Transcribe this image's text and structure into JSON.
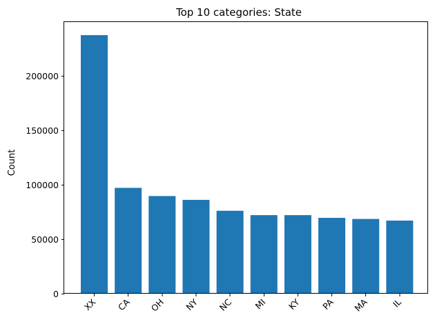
{
  "chart_data": {
    "type": "bar",
    "title": "Top 10 categories: State",
    "xlabel": "",
    "ylabel": "Count",
    "categories": [
      "XX",
      "CA",
      "OH",
      "NY",
      "NC",
      "MI",
      "KY",
      "PA",
      "MA",
      "IL"
    ],
    "values": [
      237000,
      97000,
      89500,
      86000,
      76000,
      72000,
      72000,
      69500,
      68500,
      67000
    ],
    "ylim": [
      0,
      249000
    ],
    "yticks": [
      0,
      50000,
      100000,
      150000,
      200000
    ],
    "ytick_labels": [
      "0",
      "50000",
      "100000",
      "150000",
      "200000"
    ],
    "bar_color": "#1f77b4",
    "grid": false,
    "legend": "none"
  }
}
